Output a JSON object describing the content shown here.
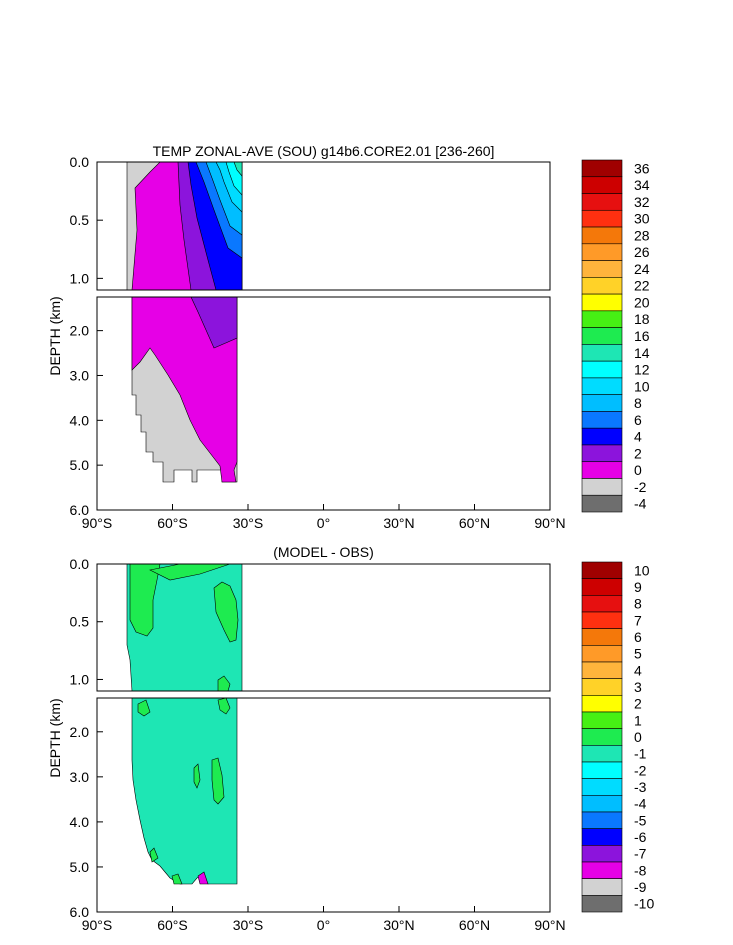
{
  "chart_data": [
    {
      "type": "contour",
      "title": "TEMP ZONAL-AVE (SOU) g14b6.CORE2.01 [236-260]",
      "ylabel": "DEPTH (km)",
      "xlabel": "",
      "xlim": [
        -90,
        90
      ],
      "ylim": [
        6.0,
        0.0
      ],
      "x_ticks": [
        "90°S",
        "60°S",
        "30°S",
        "0°",
        "30°N",
        "60°N",
        "90°N"
      ],
      "y_ticks_upper": [
        "0.0",
        "0.5",
        "1.0"
      ],
      "y_ticks_lower": [
        "2.0",
        "3.0",
        "4.0",
        "5.0",
        "6.0"
      ],
      "data_extent": {
        "lat_min": -78,
        "lat_max": -35
      },
      "colorbar": {
        "labels": [
          "36",
          "34",
          "32",
          "30",
          "28",
          "26",
          "24",
          "22",
          "20",
          "18",
          "16",
          "14",
          "12",
          "10",
          "8",
          "6",
          "4",
          "2",
          "0",
          "-2",
          "-4"
        ],
        "colors": [
          "#a00000",
          "#cd0000",
          "#e61010",
          "#ff3010",
          "#f4780a",
          "#ff9a28",
          "#ffb43c",
          "#ffd228",
          "#ffff00",
          "#46f014",
          "#1eeb50",
          "#1ee6b4",
          "#00ffff",
          "#00dcff",
          "#00beff",
          "#0a78ff",
          "#0000ff",
          "#8c14dc",
          "#e600e6",
          "#d2d2d2",
          "#6e6e6e"
        ]
      },
      "regions": [
        {
          "name": "0 to 2",
          "color": "#e600e6"
        },
        {
          "name": "-2 to 0",
          "color": "#d2d2d2"
        },
        {
          "name": "2 to 4",
          "color": "#8c14dc"
        },
        {
          "name": "4 to 6",
          "color": "#0000ff"
        },
        {
          "name": "6 to 8",
          "color": "#0a78ff"
        },
        {
          "name": "8 to 10",
          "color": "#00beff"
        },
        {
          "name": "10 to 12",
          "color": "#00dcff"
        },
        {
          "name": "12 to 14",
          "color": "#00ffff"
        },
        {
          "name": "14 to 16",
          "color": "#1ee6b4"
        }
      ]
    },
    {
      "type": "contour",
      "title": "(MODEL - OBS)",
      "ylabel": "DEPTH (km)",
      "xlabel": "",
      "xlim": [
        -90,
        90
      ],
      "ylim": [
        6.0,
        0.0
      ],
      "x_ticks": [
        "90°S",
        "60°S",
        "30°S",
        "0°",
        "30°N",
        "60°N",
        "90°N"
      ],
      "y_ticks_upper": [
        "0.0",
        "0.5",
        "1.0"
      ],
      "y_ticks_lower": [
        "2.0",
        "3.0",
        "4.0",
        "5.0",
        "6.0"
      ],
      "data_extent": {
        "lat_min": -78,
        "lat_max": -35
      },
      "colorbar": {
        "labels": [
          "10",
          "9",
          "8",
          "7",
          "6",
          "5",
          "4",
          "3",
          "2",
          "1",
          "0",
          "-1",
          "-2",
          "-3",
          "-4",
          "-5",
          "-6",
          "-7",
          "-8",
          "-9",
          "-10"
        ],
        "colors": [
          "#a00000",
          "#cd0000",
          "#e61010",
          "#ff3010",
          "#f4780a",
          "#ff9a28",
          "#ffb43c",
          "#ffd228",
          "#ffff00",
          "#46f014",
          "#1eeb50",
          "#1ee6b4",
          "#00ffff",
          "#00dcff",
          "#00beff",
          "#0a78ff",
          "#0000ff",
          "#8c14dc",
          "#e600e6",
          "#d2d2d2",
          "#6e6e6e"
        ]
      },
      "regions": [
        {
          "name": "-1 to 0",
          "color": "#1ee6b4"
        },
        {
          "name": "0 to 1",
          "color": "#1eeb50"
        },
        {
          "name": "1 to 2",
          "color": "#46f014"
        },
        {
          "name": "-8 to -7",
          "color": "#e600e6"
        }
      ]
    }
  ]
}
